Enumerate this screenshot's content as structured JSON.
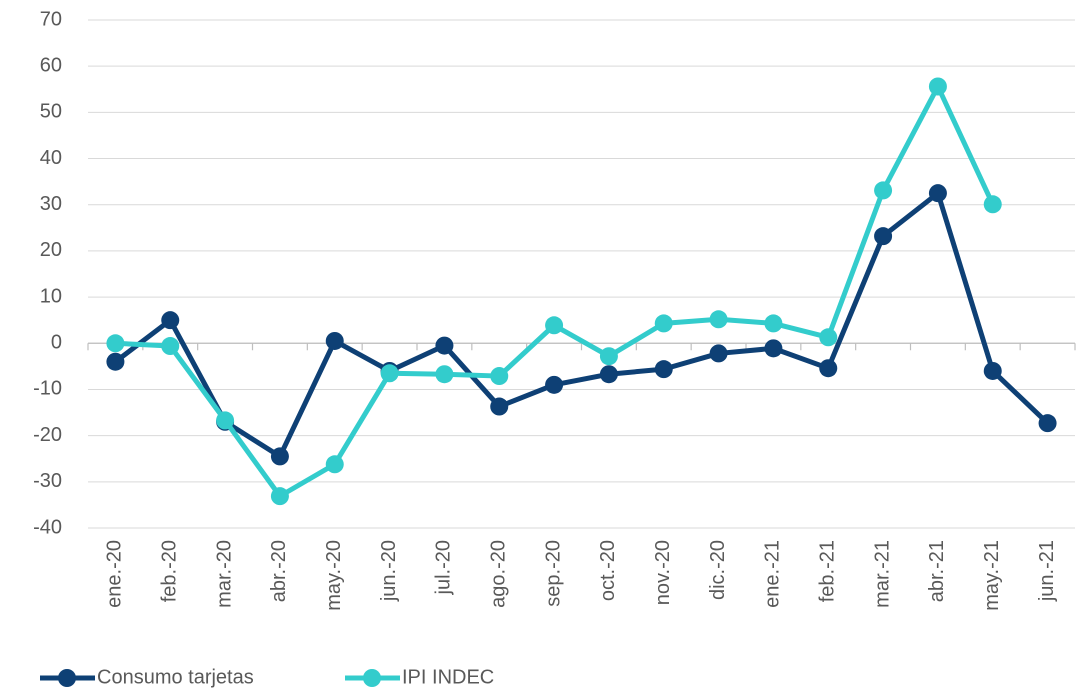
{
  "chart_data": {
    "type": "line",
    "categories": [
      "ene.-20",
      "feb.-20",
      "mar.-20",
      "abr.-20",
      "may.-20",
      "jun.-20",
      "jul.-20",
      "ago.-20",
      "sep.-20",
      "oct.-20",
      "nov.-20",
      "dic.-20",
      "ene.-21",
      "feb.-21",
      "mar.-21",
      "abr.-21",
      "may.-21",
      "jun.-21"
    ],
    "series": [
      {
        "name": "Consumo tarjetas",
        "color": "#0e4075",
        "values": [
          -4,
          5,
          -17,
          -24.5,
          0.5,
          -6,
          -0.5,
          -13.7,
          -9,
          -6.7,
          -5.6,
          -2.2,
          -1.1,
          -5.4,
          23.2,
          32.5,
          -6,
          -17.3
        ]
      },
      {
        "name": "IPI INDEC",
        "color": "#33cccc",
        "values": [
          0,
          -0.6,
          -16.7,
          -33.1,
          -26.2,
          -6.5,
          -6.7,
          -7.1,
          3.9,
          -2.8,
          4.3,
          5.2,
          4.3,
          1.3,
          33.1,
          55.6,
          30.1,
          null
        ]
      }
    ],
    "ylim": [
      -40,
      70
    ],
    "yticks": [
      -40,
      -30,
      -20,
      -10,
      0,
      10,
      20,
      30,
      40,
      50,
      60,
      70
    ],
    "grid": true,
    "legend": "bottom-left"
  }
}
